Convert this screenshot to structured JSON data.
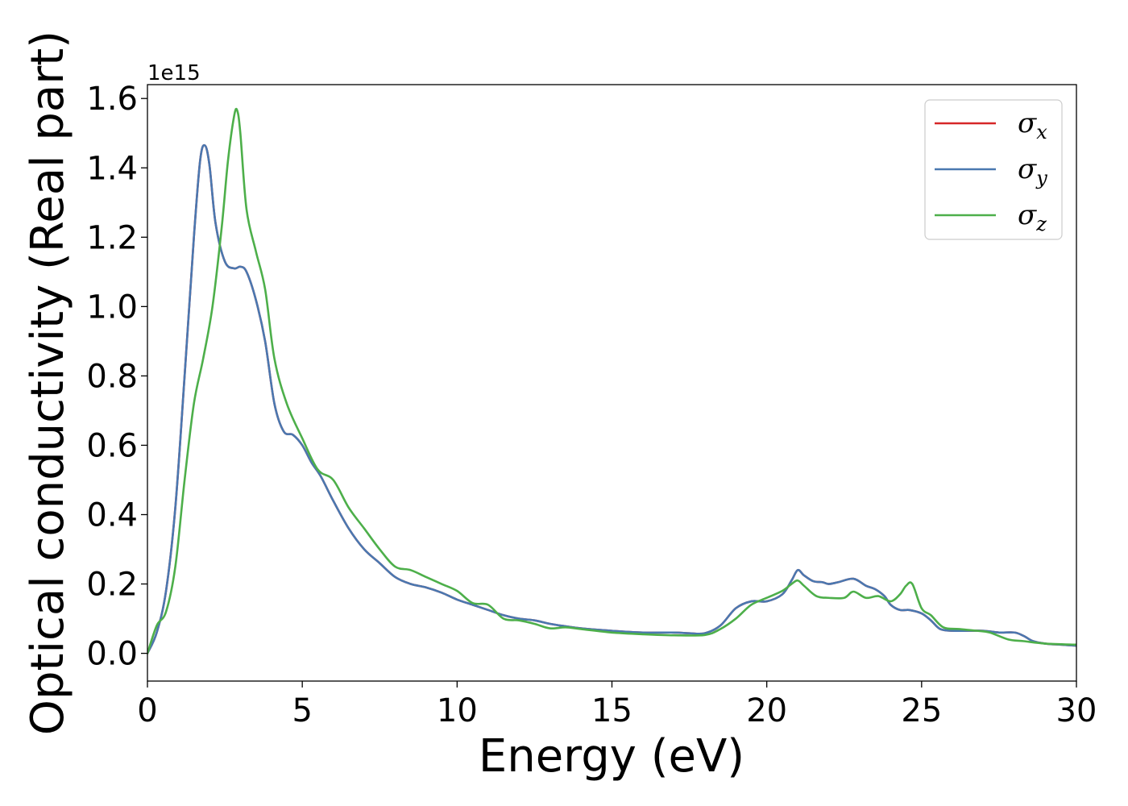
{
  "chart_data": {
    "type": "line",
    "xlabel": "Energy (eV)",
    "ylabel": "Optical conductivity (Real part)",
    "y_offset_label": "1e15",
    "xlim": [
      0,
      30
    ],
    "ylim": [
      -0.08,
      1.64
    ],
    "x_ticks": [
      0,
      5,
      10,
      15,
      20,
      25,
      30
    ],
    "x_tick_labels": [
      "0",
      "5",
      "10",
      "15",
      "20",
      "25",
      "30"
    ],
    "y_ticks": [
      0.0,
      0.2,
      0.4,
      0.6,
      0.8,
      1.0,
      1.2,
      1.4,
      1.6
    ],
    "y_tick_labels": [
      "0.0",
      "0.2",
      "0.4",
      "0.6",
      "0.8",
      "1.0",
      "1.2",
      "1.4",
      "1.6"
    ],
    "grid": false,
    "legend_position": "top-right",
    "series": [
      {
        "name": "σx",
        "symbol": "σ",
        "subscript": "x",
        "color": "#d62728",
        "x": [
          0,
          0.3,
          0.6,
          0.9,
          1.2,
          1.5,
          1.7,
          1.85,
          2.0,
          2.2,
          2.5,
          2.8,
          3.0,
          3.2,
          3.5,
          3.8,
          4.1,
          4.4,
          4.7,
          5.0,
          5.3,
          5.6,
          6.0,
          6.5,
          7.0,
          7.5,
          8.0,
          8.5,
          9.0,
          9.5,
          10.0,
          10.5,
          11.0,
          11.5,
          12.0,
          12.5,
          13.0,
          13.5,
          14.0,
          15.0,
          16.0,
          17.0,
          17.5,
          18.0,
          18.5,
          19.0,
          19.5,
          20.0,
          20.5,
          20.8,
          21.0,
          21.2,
          21.5,
          21.8,
          22.0,
          22.3,
          22.8,
          23.2,
          23.5,
          23.8,
          24.0,
          24.3,
          24.6,
          25.0,
          25.3,
          25.6,
          26.0,
          26.5,
          27.0,
          27.5,
          28.0,
          28.3,
          28.6,
          29.0,
          29.5,
          30.0
        ],
        "values": [
          0.0,
          0.06,
          0.18,
          0.42,
          0.8,
          1.2,
          1.42,
          1.465,
          1.41,
          1.24,
          1.13,
          1.11,
          1.115,
          1.1,
          1.02,
          0.9,
          0.72,
          0.64,
          0.63,
          0.6,
          0.55,
          0.51,
          0.44,
          0.36,
          0.3,
          0.26,
          0.22,
          0.2,
          0.19,
          0.175,
          0.155,
          0.14,
          0.125,
          0.11,
          0.1,
          0.095,
          0.085,
          0.078,
          0.072,
          0.065,
          0.06,
          0.06,
          0.058,
          0.058,
          0.08,
          0.13,
          0.15,
          0.15,
          0.17,
          0.21,
          0.24,
          0.225,
          0.208,
          0.205,
          0.2,
          0.205,
          0.215,
          0.195,
          0.185,
          0.165,
          0.14,
          0.125,
          0.125,
          0.115,
          0.095,
          0.07,
          0.065,
          0.065,
          0.065,
          0.06,
          0.06,
          0.05,
          0.035,
          0.028,
          0.025,
          0.022
        ]
      },
      {
        "name": "σy",
        "symbol": "σ",
        "subscript": "y",
        "color": "#4a78b0",
        "x": [
          0,
          0.3,
          0.6,
          0.9,
          1.2,
          1.5,
          1.7,
          1.85,
          2.0,
          2.2,
          2.5,
          2.8,
          3.0,
          3.2,
          3.5,
          3.8,
          4.1,
          4.4,
          4.7,
          5.0,
          5.3,
          5.6,
          6.0,
          6.5,
          7.0,
          7.5,
          8.0,
          8.5,
          9.0,
          9.5,
          10.0,
          10.5,
          11.0,
          11.5,
          12.0,
          12.5,
          13.0,
          13.5,
          14.0,
          15.0,
          16.0,
          17.0,
          17.5,
          18.0,
          18.5,
          19.0,
          19.5,
          20.0,
          20.5,
          20.8,
          21.0,
          21.2,
          21.5,
          21.8,
          22.0,
          22.3,
          22.8,
          23.2,
          23.5,
          23.8,
          24.0,
          24.3,
          24.6,
          25.0,
          25.3,
          25.6,
          26.0,
          26.5,
          27.0,
          27.5,
          28.0,
          28.3,
          28.6,
          29.0,
          29.5,
          30.0
        ],
        "values": [
          0.0,
          0.06,
          0.18,
          0.42,
          0.8,
          1.2,
          1.42,
          1.465,
          1.41,
          1.24,
          1.13,
          1.11,
          1.115,
          1.1,
          1.02,
          0.9,
          0.72,
          0.64,
          0.63,
          0.6,
          0.55,
          0.51,
          0.44,
          0.36,
          0.3,
          0.26,
          0.22,
          0.2,
          0.19,
          0.175,
          0.155,
          0.14,
          0.125,
          0.11,
          0.1,
          0.095,
          0.085,
          0.078,
          0.072,
          0.065,
          0.06,
          0.06,
          0.058,
          0.058,
          0.08,
          0.13,
          0.15,
          0.15,
          0.17,
          0.21,
          0.24,
          0.225,
          0.208,
          0.205,
          0.2,
          0.205,
          0.215,
          0.195,
          0.185,
          0.165,
          0.14,
          0.125,
          0.125,
          0.115,
          0.095,
          0.07,
          0.065,
          0.065,
          0.065,
          0.06,
          0.06,
          0.05,
          0.035,
          0.028,
          0.025,
          0.022
        ]
      },
      {
        "name": "σz",
        "symbol": "σ",
        "subscript": "z",
        "color": "#4daf4a",
        "x": [
          0,
          0.3,
          0.6,
          0.9,
          1.2,
          1.5,
          1.8,
          2.1,
          2.4,
          2.6,
          2.8,
          2.9,
          3.0,
          3.2,
          3.5,
          3.8,
          4.1,
          4.5,
          5.0,
          5.5,
          6.0,
          6.5,
          7.0,
          7.5,
          8.0,
          8.5,
          9.0,
          9.5,
          10.0,
          10.5,
          11.0,
          11.5,
          12.0,
          12.5,
          13.0,
          13.5,
          14.0,
          15.0,
          16.0,
          17.0,
          18.0,
          18.5,
          19.0,
          19.5,
          20.0,
          20.5,
          20.8,
          21.0,
          21.2,
          21.6,
          22.0,
          22.5,
          22.8,
          23.2,
          23.6,
          24.0,
          24.3,
          24.5,
          24.7,
          25.0,
          25.3,
          25.7,
          26.2,
          26.8,
          27.2,
          27.8,
          28.3,
          29.0,
          30.0
        ],
        "values": [
          0.0,
          0.08,
          0.12,
          0.25,
          0.5,
          0.72,
          0.85,
          1.0,
          1.23,
          1.42,
          1.55,
          1.565,
          1.5,
          1.28,
          1.16,
          1.05,
          0.85,
          0.72,
          0.62,
          0.53,
          0.5,
          0.42,
          0.36,
          0.3,
          0.25,
          0.24,
          0.22,
          0.2,
          0.18,
          0.145,
          0.14,
          0.1,
          0.095,
          0.085,
          0.072,
          0.075,
          0.07,
          0.06,
          0.055,
          0.052,
          0.053,
          0.07,
          0.1,
          0.14,
          0.16,
          0.18,
          0.2,
          0.21,
          0.195,
          0.165,
          0.16,
          0.16,
          0.178,
          0.16,
          0.165,
          0.15,
          0.17,
          0.195,
          0.2,
          0.13,
          0.11,
          0.075,
          0.07,
          0.065,
          0.06,
          0.04,
          0.035,
          0.028,
          0.025
        ]
      }
    ]
  }
}
